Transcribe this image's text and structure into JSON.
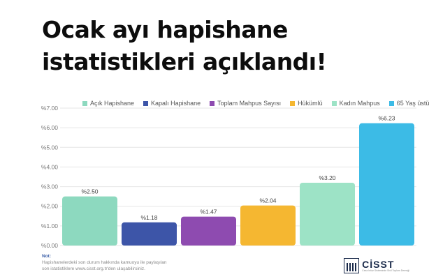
{
  "title_lines": [
    "Ocak ayı hapishane",
    "istatistikleri açıklandı!"
  ],
  "legend": [
    {
      "label": "Açık Hapishane",
      "color": "#8dd9bf"
    },
    {
      "label": "Kapalı Hapishane",
      "color": "#3d55a8"
    },
    {
      "label": "Toplam Mahpus Sayısı",
      "color": "#8e4bb0"
    },
    {
      "label": "Hükümlü",
      "color": "#f5b731"
    },
    {
      "label": "Kadın Mahpus",
      "color": "#9de3c6"
    },
    {
      "label": "65 Yaş üstü",
      "color": "#3cbbe6"
    }
  ],
  "chart_data": {
    "type": "bar",
    "categories": [
      "Açık Hapishane",
      "Kapalı Hapishane",
      "Toplam Mahpus Sayısı",
      "Hükümlü",
      "Kadın Mahpus",
      "65 Yaş üstü"
    ],
    "values": [
      2.5,
      1.18,
      1.47,
      2.04,
      3.2,
      6.23
    ],
    "value_labels": [
      "%2.50",
      "%1.18",
      "%1.47",
      "%2.04",
      "%3.20",
      "%6.23"
    ],
    "colors": [
      "#8dd9bf",
      "#3d55a8",
      "#8e4bb0",
      "#f5b731",
      "#9de3c6",
      "#3cbbe6"
    ],
    "ylim": [
      0,
      7
    ],
    "yticks": [
      "%0.00",
      "%1.00",
      "%2.00",
      "%3.00",
      "%4.00",
      "%5.00",
      "%6.00",
      "%7.00"
    ],
    "grid": true,
    "legend": "top"
  },
  "note": {
    "title": "Not:",
    "lines": [
      "Hapishanelerdeki son durum hakkında kamuoyu ile paylaşılan",
      "son istatistiklere www.cisst.org.tr'den ulaşabilirsiniz."
    ]
  },
  "logo": {
    "word": "CİSST",
    "sub": "Ceza İnfaz Sisteminde Sivil Toplum Derneği"
  }
}
